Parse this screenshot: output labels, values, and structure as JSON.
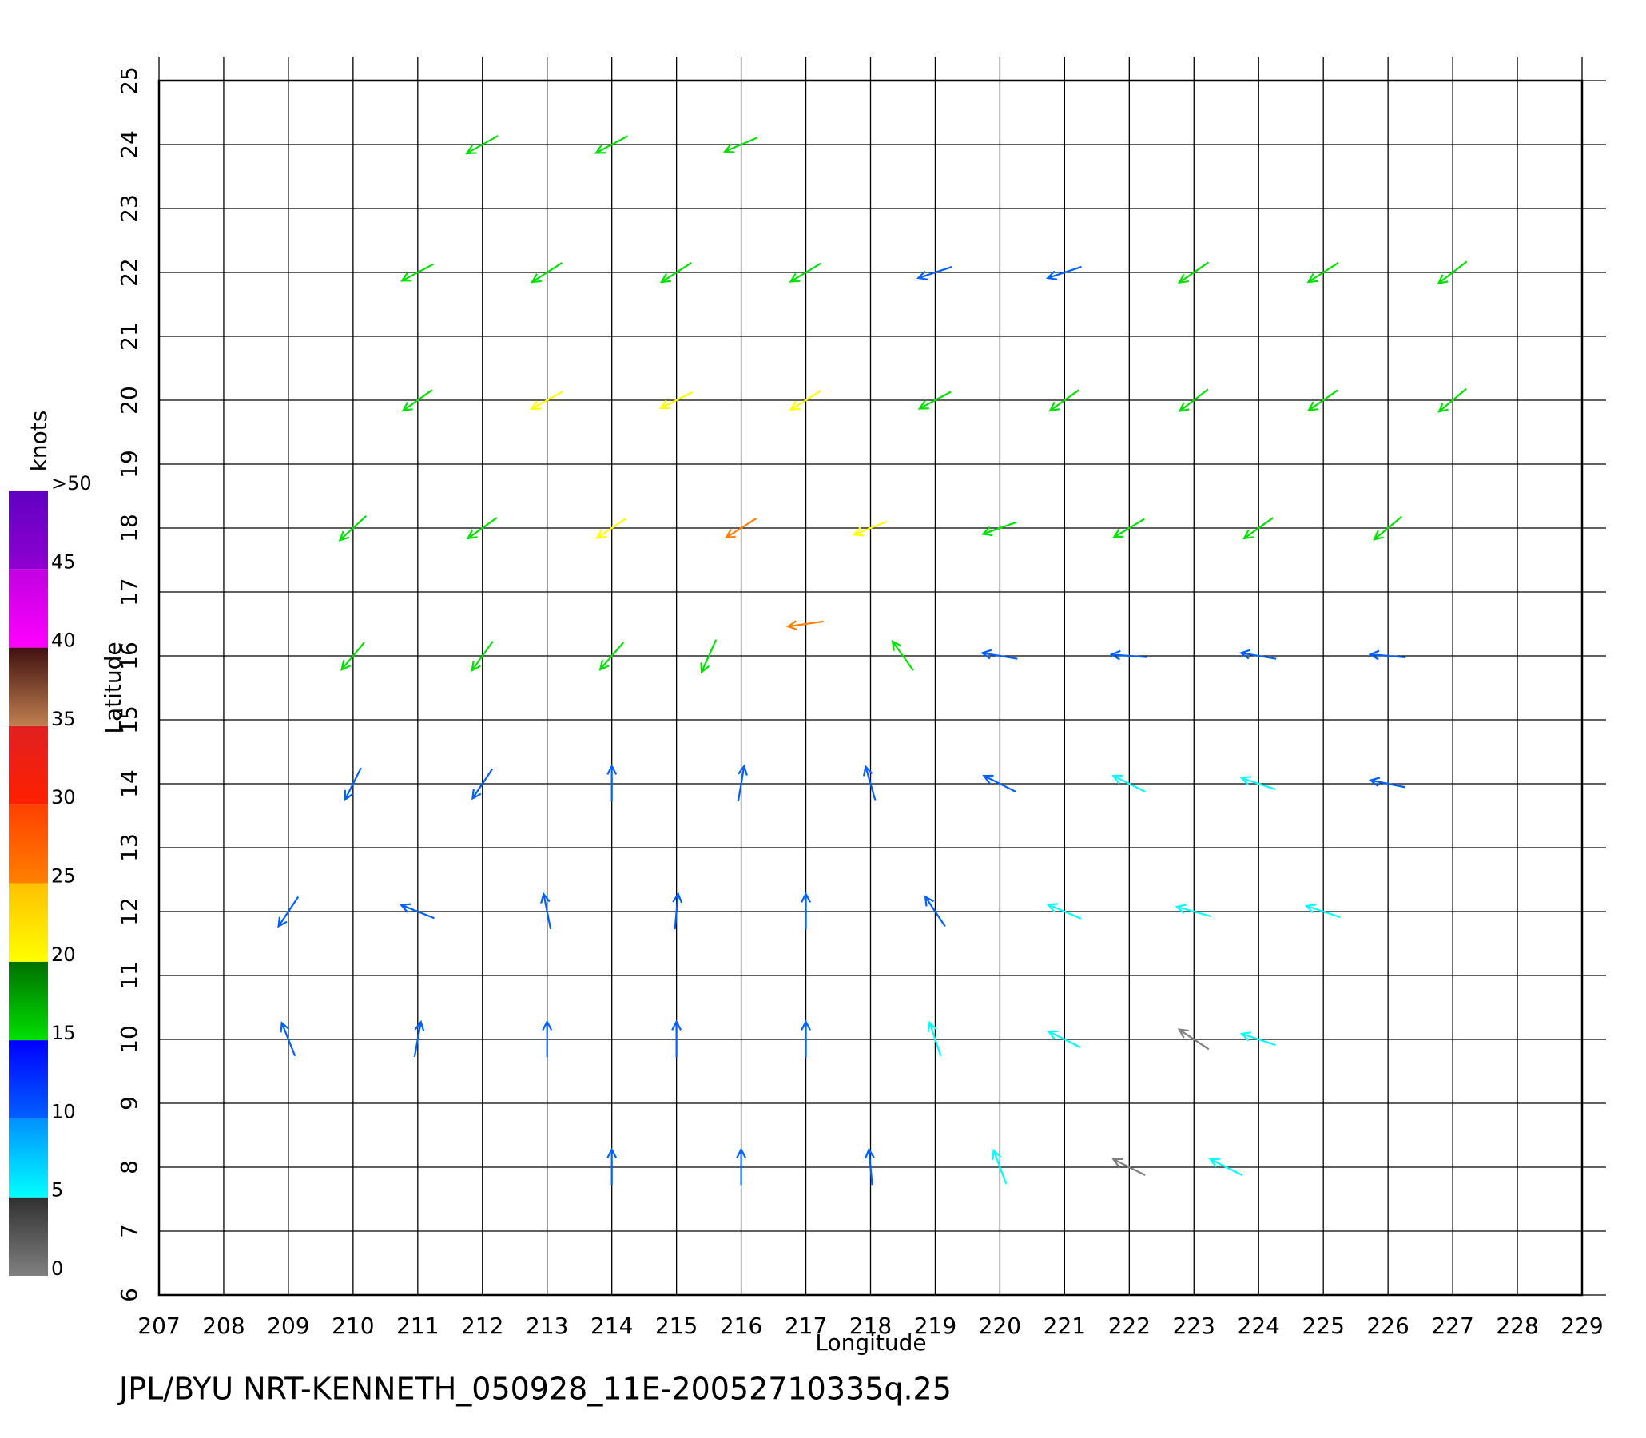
{
  "chart_data": {
    "type": "quiver",
    "title": "JPL/BYU  NRT-KENNETH_050928_11E-20052710335q.25",
    "xlabel": "Longitude",
    "ylabel": "Latitude",
    "xlim": [
      207,
      229
    ],
    "ylim": [
      6,
      25
    ],
    "xticks": [
      207,
      208,
      209,
      210,
      211,
      212,
      213,
      214,
      215,
      216,
      217,
      218,
      219,
      220,
      221,
      222,
      223,
      224,
      225,
      226,
      227,
      228,
      229
    ],
    "yticks": [
      6,
      7,
      8,
      9,
      10,
      11,
      12,
      13,
      14,
      15,
      16,
      17,
      18,
      19,
      20,
      21,
      22,
      23,
      24,
      25
    ],
    "grid": true,
    "colorbar": {
      "label": "knots",
      "lim": [
        0,
        50
      ],
      "ticks": [
        0,
        5,
        10,
        15,
        20,
        25,
        30,
        35,
        40,
        45,
        {
          "value": 50,
          "label": ">50"
        }
      ],
      "colors": [
        [
          "#808080",
          "#303030"
        ],
        [
          "#00ffff",
          "#0090ff"
        ],
        [
          "#0060ff",
          "#0000ff"
        ],
        [
          "#00e000",
          "#007000"
        ],
        [
          "#ffff00",
          "#ffc000"
        ],
        [
          "#ff8000",
          "#ff4000"
        ],
        [
          "#ff2000",
          "#e02020"
        ],
        [
          "#c08050",
          "#401010"
        ],
        [
          "#ff00ff",
          "#c000e0"
        ],
        [
          "#9000d0",
          "#6000c0"
        ]
      ]
    },
    "vectors": {
      "lon": [
        212,
        214,
        216,
        211,
        213,
        215,
        217,
        219,
        221,
        223,
        225,
        227,
        211,
        213,
        215,
        217,
        219,
        221,
        223,
        225,
        227,
        210,
        212,
        214,
        216,
        218,
        220,
        222,
        224,
        226,
        210,
        212,
        214,
        215.5,
        217,
        218.5,
        220,
        222,
        224,
        226,
        210,
        212,
        214,
        216,
        218,
        220,
        222,
        224,
        226,
        209,
        211,
        213,
        215,
        217,
        219,
        221,
        223,
        225,
        209,
        211,
        213,
        215,
        217,
        219,
        221,
        223,
        224,
        214,
        216,
        218,
        220,
        222,
        223.5
      ],
      "lat": [
        24,
        24,
        24,
        22,
        22,
        22,
        22,
        22,
        22,
        22,
        22,
        22,
        20,
        20,
        20,
        20,
        20,
        20,
        20,
        20,
        20,
        18,
        18,
        18,
        18,
        18,
        18,
        18,
        18,
        18,
        16,
        16,
        16,
        16,
        16.5,
        16,
        16,
        16,
        16,
        16,
        14,
        14,
        14,
        14,
        14,
        14,
        14,
        14,
        14,
        12,
        12,
        12,
        12,
        12,
        12,
        12,
        12,
        12,
        10,
        10,
        10,
        10,
        10,
        10,
        10,
        10,
        10,
        8,
        8,
        8,
        8,
        8,
        8
      ],
      "u": [
        -16,
        -15,
        -14,
        -17,
        -14,
        -14,
        -15,
        -12,
        -12,
        -13,
        -14,
        -13,
        -14,
        -18,
        -18,
        -19,
        -15,
        -14,
        -13,
        -13,
        -12,
        -13,
        -14,
        -18,
        -22,
        -20,
        -17,
        -15,
        -14,
        -12,
        -10,
        -10,
        -12,
        -8,
        -28,
        -10,
        -12,
        -13,
        -12,
        -12,
        -6,
        -8,
        0,
        2,
        -4,
        -10,
        -8,
        -9,
        -10,
        -8,
        -10,
        -2,
        1,
        0,
        -6,
        -7,
        -7,
        -6,
        -4,
        2,
        0,
        0,
        0,
        -3,
        -6,
        -3,
        -6,
        0,
        0,
        -1,
        -3,
        -4,
        -6
      ],
      "v": [
        -9,
        -8,
        -6,
        -9,
        -9,
        -9,
        -9,
        -4,
        -4,
        -9,
        -9,
        -10,
        -10,
        -10,
        -9,
        -12,
        -8,
        -10,
        -10,
        -9,
        -10,
        -12,
        -10,
        -12,
        -14,
        -8,
        -6,
        -9,
        -10,
        -10,
        -12,
        -14,
        -14,
        -18,
        -4,
        14,
        2,
        1,
        2,
        1,
        -12,
        -12,
        12,
        12,
        14,
        5,
        4,
        3,
        2,
        -12,
        4,
        10,
        11,
        12,
        9,
        3,
        2,
        2,
        10,
        11,
        12,
        12,
        11,
        9,
        3,
        2,
        2,
        12,
        12,
        11,
        8,
        2,
        3
      ]
    }
  }
}
